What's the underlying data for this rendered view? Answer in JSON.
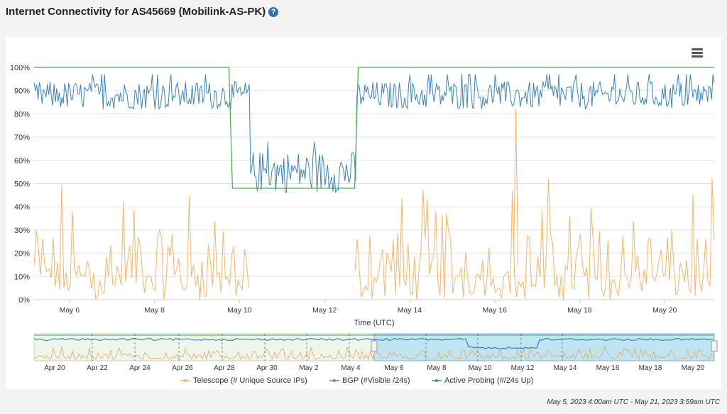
{
  "title": "Internet Connectivity for AS45669 (Mobilink-AS-PK)",
  "help_icon": "question-circle-icon",
  "menu_icon": "hamburger-menu-icon",
  "range_text": "May 5, 2023 4:00am UTC - May 21, 2023 3:59am UTC",
  "colors": {
    "telescope": "#f4b66a",
    "bgp": "#3fae49",
    "probing": "#3c84b8",
    "navigator_fill": "#bfe5f2",
    "navigator_outer": "#eef6ec"
  },
  "chart_data": {
    "type": "line",
    "xlabel": "Time (UTC)",
    "ylabel": "",
    "x_range": [
      "2023-05-05T04:00Z",
      "2023-05-21T03:59Z"
    ],
    "ylim": [
      0,
      100
    ],
    "y_ticks": [
      "0%",
      "10%",
      "20%",
      "30%",
      "40%",
      "50%",
      "60%",
      "70%",
      "80%",
      "90%",
      "100%"
    ],
    "x_ticks": [
      "May 6",
      "May 8",
      "May 10",
      "May 12",
      "May 14",
      "May 16",
      "May 18",
      "May 20"
    ],
    "series": [
      {
        "name": "Telescope (# Unique Source IPs)",
        "color": "#f4b66a",
        "note": "noisy 0-55%, spikes to ~82% near May 16, gap around May 10-12"
      },
      {
        "name": "BGP (#Visible /24s)",
        "color": "#3fae49",
        "points": [
          [
            "2023-05-05T04:00Z",
            100
          ],
          [
            "2023-05-09T18:00Z",
            100
          ],
          [
            "2023-05-09T20:00Z",
            48
          ],
          [
            "2023-05-12T17:00Z",
            48
          ],
          [
            "2023-05-12T19:00Z",
            100
          ],
          [
            "2023-05-21T03:59Z",
            100
          ]
        ]
      },
      {
        "name": "Active Probing (#/24s Up)",
        "color": "#3c84b8",
        "levels": [
          [
            "2023-05-05T04:00Z",
            88
          ],
          [
            "2023-05-10T06:00Z",
            55
          ],
          [
            "2023-05-12T18:00Z",
            88
          ],
          [
            "2023-05-21T03:59Z",
            88
          ]
        ]
      }
    ],
    "navigator": {
      "x_ticks": [
        "Apr 20",
        "Apr 22",
        "Apr 24",
        "Apr 26",
        "Apr 28",
        "Apr 30",
        "May 2",
        "May 4",
        "May 6",
        "May 8",
        "May 10",
        "May 12",
        "May 14",
        "May 16",
        "May 18",
        "May 20"
      ],
      "selected_range": [
        "May 5",
        "May 21"
      ]
    },
    "legend_position": "bottom"
  }
}
